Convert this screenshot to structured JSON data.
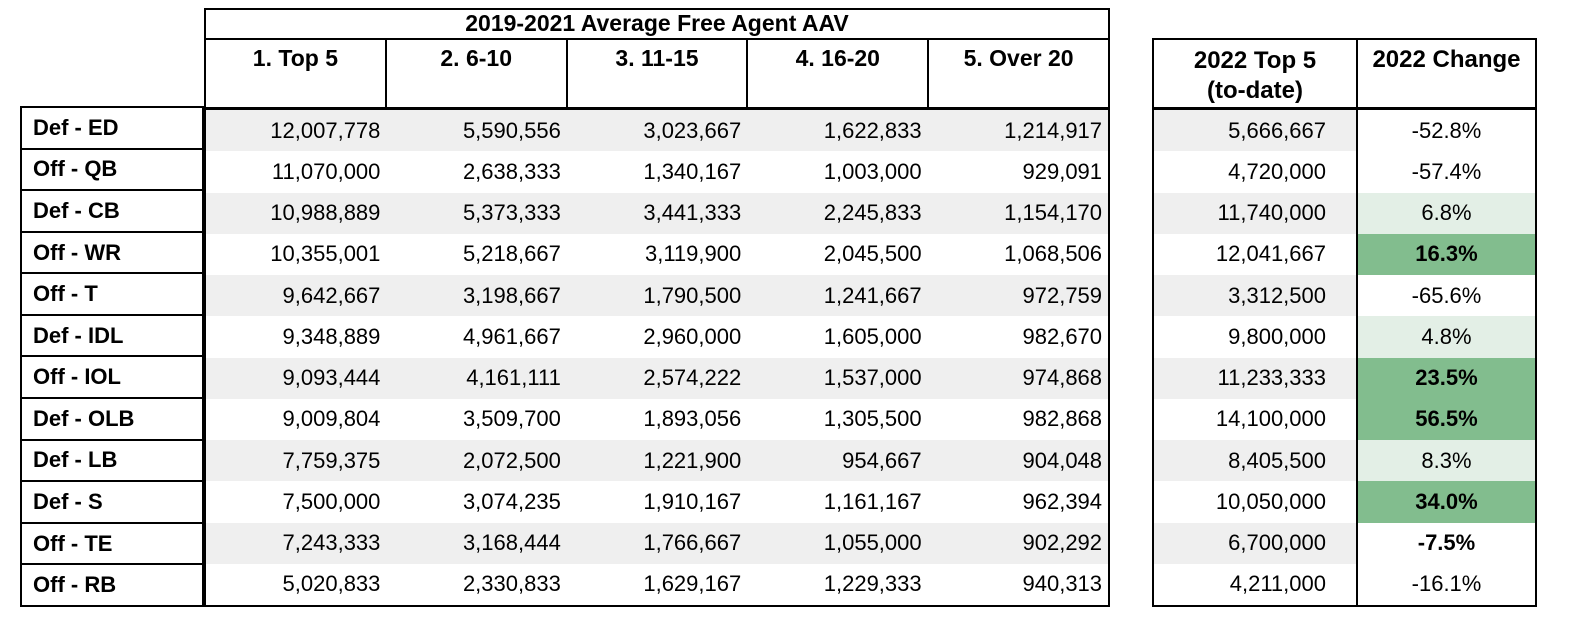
{
  "colors": {
    "stripe": "#efefef",
    "positive_strong_green": "#82bd8e",
    "positive_light_green": "#e3efe6",
    "border": "#000000",
    "text": "#000000",
    "background": "#ffffff"
  },
  "right_table": {
    "top5_header_line1": "2022 Top 5",
    "top5_header_line2": "(to-date)",
    "change_header": "2022 Change"
  },
  "chart_data": {
    "type": "table",
    "title": "2019-2021 Average Free Agent AAV",
    "left_columns": [
      "1. Top 5",
      "2. 6-10",
      "3. 11-15",
      "4. 16-20",
      "5. Over 20"
    ],
    "right_columns": [
      "2022 Top 5 (to-date)",
      "2022 Change"
    ],
    "row_header_description": "Position group (Off/Def)",
    "rows": [
      {
        "label": "Def - ED",
        "values": [
          "12,007,778",
          "5,590,556",
          "3,023,667",
          "1,622,833",
          "1,214,917"
        ],
        "top5_2022": "5,666,667",
        "change": "-52.8%",
        "change_style": "none",
        "change_bold": false
      },
      {
        "label": "Off - QB",
        "values": [
          "11,070,000",
          "2,638,333",
          "1,340,167",
          "1,003,000",
          "929,091"
        ],
        "top5_2022": "4,720,000",
        "change": "-57.4%",
        "change_style": "none",
        "change_bold": false
      },
      {
        "label": "Def - CB",
        "values": [
          "10,988,889",
          "5,373,333",
          "3,441,333",
          "2,245,833",
          "1,154,170"
        ],
        "top5_2022": "11,740,000",
        "change": "6.8%",
        "change_style": "light",
        "change_bold": false
      },
      {
        "label": "Off - WR",
        "values": [
          "10,355,001",
          "5,218,667",
          "3,119,900",
          "2,045,500",
          "1,068,506"
        ],
        "top5_2022": "12,041,667",
        "change": "16.3%",
        "change_style": "strong",
        "change_bold": true
      },
      {
        "label": "Off - T",
        "values": [
          "9,642,667",
          "3,198,667",
          "1,790,500",
          "1,241,667",
          "972,759"
        ],
        "top5_2022": "3,312,500",
        "change": "-65.6%",
        "change_style": "none",
        "change_bold": false
      },
      {
        "label": "Def - IDL",
        "values": [
          "9,348,889",
          "4,961,667",
          "2,960,000",
          "1,605,000",
          "982,670"
        ],
        "top5_2022": "9,800,000",
        "change": "4.8%",
        "change_style": "light",
        "change_bold": false
      },
      {
        "label": "Off - IOL",
        "values": [
          "9,093,444",
          "4,161,111",
          "2,574,222",
          "1,537,000",
          "974,868"
        ],
        "top5_2022": "11,233,333",
        "change": "23.5%",
        "change_style": "strong",
        "change_bold": true
      },
      {
        "label": "Def - OLB",
        "values": [
          "9,009,804",
          "3,509,700",
          "1,893,056",
          "1,305,500",
          "982,868"
        ],
        "top5_2022": "14,100,000",
        "change": "56.5%",
        "change_style": "strong",
        "change_bold": true
      },
      {
        "label": "Def - LB",
        "values": [
          "7,759,375",
          "2,072,500",
          "1,221,900",
          "954,667",
          "904,048"
        ],
        "top5_2022": "8,405,500",
        "change": "8.3%",
        "change_style": "light",
        "change_bold": false
      },
      {
        "label": "Def - S",
        "values": [
          "7,500,000",
          "3,074,235",
          "1,910,167",
          "1,161,167",
          "962,394"
        ],
        "top5_2022": "10,050,000",
        "change": "34.0%",
        "change_style": "strong",
        "change_bold": true
      },
      {
        "label": "Off - TE",
        "values": [
          "7,243,333",
          "3,168,444",
          "1,766,667",
          "1,055,000",
          "902,292"
        ],
        "top5_2022": "6,700,000",
        "change": "-7.5%",
        "change_style": "none",
        "change_bold": true
      },
      {
        "label": "Off - RB",
        "values": [
          "5,020,833",
          "2,330,833",
          "1,629,167",
          "1,229,333",
          "940,313"
        ],
        "top5_2022": "4,211,000",
        "change": "-16.1%",
        "change_style": "none",
        "change_bold": false
      }
    ]
  }
}
